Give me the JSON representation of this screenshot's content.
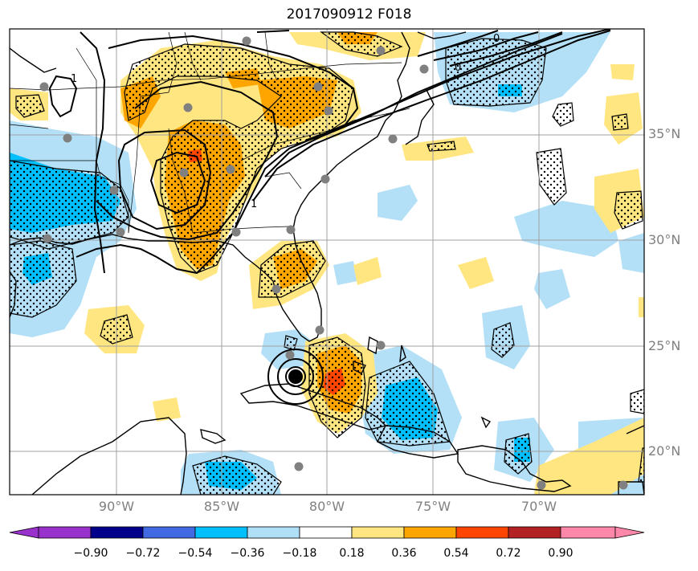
{
  "title": "2017090912 F018",
  "lon_labels": [
    "90°W",
    "85°W",
    "80°W",
    "75°W",
    "70°W"
  ],
  "lat_labels": [
    "35°N",
    "30°N",
    "25°N",
    "20°N"
  ],
  "contour_labels": [
    "1",
    "1",
    "0",
    "0"
  ],
  "colorbar": {
    "labels": [
      "−0.90",
      "−0.72",
      "−0.54",
      "−0.36",
      "−0.18",
      "0.18",
      "0.36",
      "0.54",
      "0.72",
      "0.90"
    ],
    "colors": [
      "#9932cc",
      "#00008b",
      "#4169e1",
      "#00bfff",
      "#b0e0f8",
      "#ffffff",
      "#ffe680",
      "#ffa500",
      "#ff4500",
      "#b22222",
      "#ff88aa"
    ]
  },
  "colors": {
    "light_blue": "#b3e0f7",
    "blue": "#00bfff",
    "yellow": "#ffe680",
    "orange": "#ffa500",
    "red": "#ff4500",
    "station": "#808080",
    "storm_center": "#000000",
    "grid": "#a0a0a0"
  }
}
